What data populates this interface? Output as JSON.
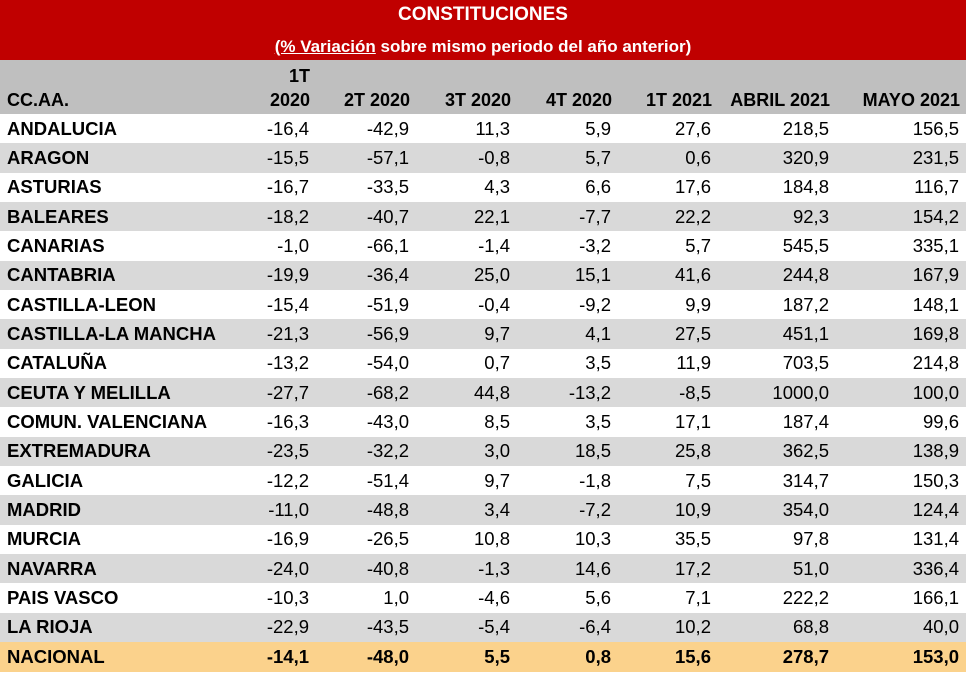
{
  "title": "CONSTITUCIONES",
  "subtitle": {
    "underlined": "(%  Variación",
    "rest": " sobre mismo periodo del año anterior)"
  },
  "headers": [
    "CC.AA.",
    "1T 2020",
    "2T 2020",
    "3T 2020",
    "4T 2020",
    "1T 2021",
    "ABRIL 2021",
    "MAYO 2021"
  ],
  "rows": [
    {
      "name": "ANDALUCIA",
      "values": [
        "-16,4",
        "-42,9",
        "11,3",
        "5,9",
        "27,6",
        "218,5",
        "156,5"
      ]
    },
    {
      "name": "ARAGON",
      "values": [
        "-15,5",
        "-57,1",
        "-0,8",
        "5,7",
        "0,6",
        "320,9",
        "231,5"
      ]
    },
    {
      "name": "ASTURIAS",
      "values": [
        "-16,7",
        "-33,5",
        "4,3",
        "6,6",
        "17,6",
        "184,8",
        "116,7"
      ]
    },
    {
      "name": "BALEARES",
      "values": [
        "-18,2",
        "-40,7",
        "22,1",
        "-7,7",
        "22,2",
        "92,3",
        "154,2"
      ]
    },
    {
      "name": "CANARIAS",
      "values": [
        "-1,0",
        "-66,1",
        "-1,4",
        "-3,2",
        "5,7",
        "545,5",
        "335,1"
      ]
    },
    {
      "name": "CANTABRIA",
      "values": [
        "-19,9",
        "-36,4",
        "25,0",
        "15,1",
        "41,6",
        "244,8",
        "167,9"
      ]
    },
    {
      "name": "CASTILLA-LEON",
      "values": [
        "-15,4",
        "-51,9",
        "-0,4",
        "-9,2",
        "9,9",
        "187,2",
        "148,1"
      ]
    },
    {
      "name": "CASTILLA-LA MANCHA",
      "values": [
        "-21,3",
        "-56,9",
        "9,7",
        "4,1",
        "27,5",
        "451,1",
        "169,8"
      ]
    },
    {
      "name": "CATALUÑA",
      "values": [
        "-13,2",
        "-54,0",
        "0,7",
        "3,5",
        "11,9",
        "703,5",
        "214,8"
      ]
    },
    {
      "name": "CEUTA Y MELILLA",
      "values": [
        "-27,7",
        "-68,2",
        "44,8",
        "-13,2",
        "-8,5",
        "1000,0",
        "100,0"
      ]
    },
    {
      "name": "COMUN. VALENCIANA",
      "values": [
        "-16,3",
        "-43,0",
        "8,5",
        "3,5",
        "17,1",
        "187,4",
        "99,6"
      ]
    },
    {
      "name": "EXTREMADURA",
      "values": [
        "-23,5",
        "-32,2",
        "3,0",
        "18,5",
        "25,8",
        "362,5",
        "138,9"
      ]
    },
    {
      "name": "GALICIA",
      "values": [
        "-12,2",
        "-51,4",
        "9,7",
        "-1,8",
        "7,5",
        "314,7",
        "150,3"
      ]
    },
    {
      "name": "MADRID",
      "values": [
        "-11,0",
        "-48,8",
        "3,4",
        "-7,2",
        "10,9",
        "354,0",
        "124,4"
      ]
    },
    {
      "name": "MURCIA",
      "values": [
        "-16,9",
        "-26,5",
        "10,8",
        "10,3",
        "35,5",
        "97,8",
        "131,4"
      ]
    },
    {
      "name": "NAVARRA",
      "values": [
        "-24,0",
        "-40,8",
        "-1,3",
        "14,6",
        "17,2",
        "51,0",
        "336,4"
      ]
    },
    {
      "name": "PAIS VASCO",
      "values": [
        "-10,3",
        "1,0",
        "-4,6",
        "5,6",
        "7,1",
        "222,2",
        "166,1"
      ]
    },
    {
      "name": "LA RIOJA",
      "values": [
        "-22,9",
        "-43,5",
        "-5,4",
        "-6,4",
        "10,2",
        "68,8",
        "40,0"
      ]
    }
  ],
  "total": {
    "name": "NACIONAL",
    "values": [
      "-14,1",
      "-48,0",
      "5,5",
      "0,8",
      "15,6",
      "278,7",
      "153,0"
    ]
  },
  "colors": {
    "title_bg": "#c00000",
    "header_bg": "#bfbfbf",
    "alt_row_bg": "#d9d9d9",
    "total_bg": "#fbd28c"
  }
}
